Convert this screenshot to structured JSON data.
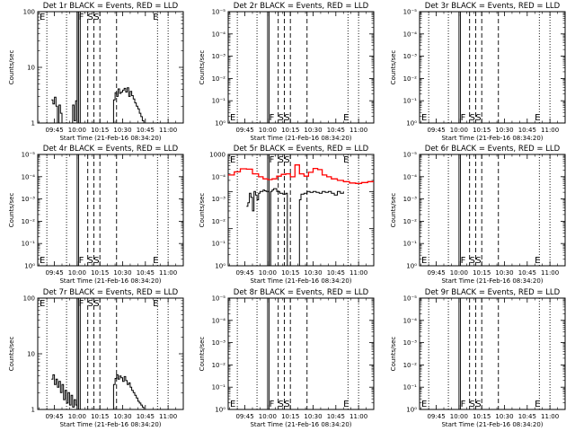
{
  "figure": {
    "x_tick_labels": [
      "09:45",
      "10:00",
      "10:15",
      "10:30",
      "10:45",
      "11:00"
    ],
    "x_label": "Start Time (21-Feb-16 08:34:20)",
    "y_label": "Counts/sec",
    "colors": {
      "events": "#000000",
      "lld": "#ff0000",
      "background": "#ffffff"
    }
  },
  "chart_data": [
    {
      "type": "line",
      "panel": 1,
      "title": "Det 1r BLACK = Events, RED = LLD",
      "y_scale": "log",
      "ylim": [
        1,
        100
      ],
      "y_tick_labels": [
        "1",
        "10",
        "100"
      ],
      "markers": [
        {
          "label": "E",
          "x": "09:34"
        },
        {
          "label": "F",
          "x": "10:01"
        },
        {
          "label": "S",
          "x": "10:07"
        },
        {
          "label": "S",
          "x": "10:11"
        },
        {
          "label": "E",
          "x": "10:50"
        }
      ],
      "series": [
        {
          "color": "#000000",
          "x": [
            "09:43",
            "09:44",
            "09:45",
            "09:46",
            "09:47",
            "09:48",
            "09:49",
            "09:50",
            "09:55",
            "09:57",
            "09:58",
            "09:59",
            "10:00",
            "10:00",
            "10:01",
            "10:02",
            "10:23",
            "10:24",
            "10:25",
            "10:26",
            "10:27",
            "10:28",
            "10:29",
            "10:30",
            "10:31",
            "10:32",
            "10:33",
            "10:34",
            "10:35",
            "10:36",
            "10:37",
            "10:38",
            "10:39",
            "10:40",
            "10:41",
            "10:42",
            "10:43",
            "10:44"
          ],
          "y": [
            2.6,
            2.2,
            2.9,
            2.0,
            1.0,
            2.1,
            1.5,
            1.0,
            1.0,
            2.1,
            1.1,
            2.5,
            1.0,
            100,
            100,
            1.0,
            1.0,
            2.6,
            3.5,
            3.0,
            4.1,
            3.4,
            3.6,
            3.9,
            4.2,
            3.6,
            4.3,
            3.0,
            3.7,
            3.1,
            2.7,
            2.3,
            2.0,
            1.8,
            1.5,
            1.3,
            1.1,
            1.0
          ]
        }
      ]
    },
    {
      "type": "line",
      "panel": 2,
      "title": "Det 2r BLACK = Events, RED = LLD",
      "y_scale": "log",
      "ylim": [
        1,
        100000
      ],
      "y_tick_labels": [
        "10⁰",
        "10⁻¹",
        "10⁻²",
        "10⁻³",
        "10⁻⁴",
        "10⁻⁵"
      ],
      "markers": [
        {
          "label": "E",
          "x": "09:34"
        },
        {
          "label": "F",
          "x": "10:01"
        },
        {
          "label": "S",
          "x": "10:07"
        },
        {
          "label": "S",
          "x": "10:11"
        },
        {
          "label": "E",
          "x": "10:50"
        }
      ],
      "series": []
    },
    {
      "type": "line",
      "panel": 3,
      "title": "Det 3r BLACK = Events, RED = LLD",
      "y_scale": "log",
      "ylim": [
        1,
        100000
      ],
      "y_tick_labels": [
        "10⁰",
        "10⁻¹",
        "10⁻²",
        "10⁻³",
        "10⁻⁴",
        "10⁻⁵"
      ],
      "markers": [
        {
          "label": "E",
          "x": "09:34"
        },
        {
          "label": "F",
          "x": "10:01"
        },
        {
          "label": "S",
          "x": "10:07"
        },
        {
          "label": "S",
          "x": "10:11"
        },
        {
          "label": "E",
          "x": "10:50"
        }
      ],
      "series": []
    },
    {
      "type": "line",
      "panel": 4,
      "title": "Det 4r BLACK = Events, RED = LLD",
      "y_scale": "log",
      "ylim": [
        1,
        100000
      ],
      "y_tick_labels": [
        "10⁰",
        "10⁻¹",
        "10⁻²",
        "10⁻³",
        "10⁻⁴",
        "10⁻⁵"
      ],
      "markers": [
        {
          "label": "E",
          "x": "09:34"
        },
        {
          "label": "F",
          "x": "10:01"
        },
        {
          "label": "S",
          "x": "10:07"
        },
        {
          "label": "S",
          "x": "10:11"
        },
        {
          "label": "E",
          "x": "10:50"
        }
      ],
      "series": []
    },
    {
      "type": "line",
      "panel": 5,
      "title": "Det 5r BLACK = Events, RED = LLD",
      "y_scale": "log",
      "ylim": [
        1,
        1000
      ],
      "y_tick_labels": [
        "10⁰",
        "10⁻¹",
        "10⁻²",
        "10⁻³",
        "10⁻⁴",
        "1000"
      ],
      "markers": [
        {
          "label": "E",
          "x": "09:34"
        },
        {
          "label": "F",
          "x": "10:01"
        },
        {
          "label": "S",
          "x": "10:07"
        },
        {
          "label": "S",
          "x": "10:11"
        },
        {
          "label": "E",
          "x": "10:50"
        }
      ],
      "series": [
        {
          "color": "#ff0000",
          "x": [
            "09:34",
            "09:38",
            "09:42",
            "09:46",
            "09:50",
            "09:54",
            "09:57",
            "10:00",
            "10:03",
            "10:06",
            "10:09",
            "10:12",
            "10:15",
            "10:18",
            "10:21",
            "10:24",
            "10:27",
            "10:30",
            "10:33",
            "10:36",
            "10:39",
            "10:42",
            "10:46",
            "10:50",
            "10:54",
            "10:58",
            "11:02",
            "11:06",
            "11:10"
          ],
          "y": [
            280,
            340,
            410,
            400,
            300,
            250,
            220,
            210,
            220,
            260,
            290,
            300,
            250,
            520,
            300,
            260,
            330,
            420,
            390,
            280,
            250,
            220,
            200,
            185,
            170,
            165,
            175,
            185,
            190
          ]
        },
        {
          "color": "#000000",
          "x": [
            "09:46",
            "09:47",
            "09:48",
            "09:49",
            "09:50",
            "09:51",
            "09:52",
            "09:53",
            "09:54",
            "09:55",
            "09:56",
            "09:57",
            "09:58",
            "09:59",
            "10:00",
            "10:01",
            "10:02",
            "10:03",
            "10:04",
            "10:06",
            "10:08",
            "10:10",
            "10:12",
            "10:13",
            "10:21",
            "10:22",
            "10:24",
            "10:26",
            "10:28",
            "10:30",
            "10:32",
            "10:34",
            "10:36",
            "10:38",
            "10:40",
            "10:42",
            "10:44",
            "10:46",
            "10:48",
            "10:50"
          ],
          "y": [
            40,
            50,
            90,
            70,
            30,
            100,
            80,
            60,
            90,
            100,
            100,
            110,
            105,
            100,
            100,
            1.0,
            100,
            110,
            120,
            100,
            90,
            85,
            90,
            1.0,
            60,
            85,
            90,
            100,
            95,
            100,
            95,
            90,
            100,
            95,
            100,
            90,
            80,
            100,
            90,
            100
          ]
        }
      ]
    },
    {
      "type": "line",
      "panel": 6,
      "title": "Det 6r BLACK = Events, RED = LLD",
      "y_scale": "log",
      "ylim": [
        1,
        100000
      ],
      "y_tick_labels": [
        "10⁰",
        "10⁻¹",
        "10⁻²",
        "10⁻³",
        "10⁻⁴",
        "10⁻⁵"
      ],
      "markers": [
        {
          "label": "E",
          "x": "09:34"
        },
        {
          "label": "F",
          "x": "10:01"
        },
        {
          "label": "S",
          "x": "10:07"
        },
        {
          "label": "S",
          "x": "10:11"
        },
        {
          "label": "E",
          "x": "10:50"
        }
      ],
      "series": []
    },
    {
      "type": "line",
      "panel": 7,
      "title": "Det 7r BLACK = Events, RED = LLD",
      "y_scale": "log",
      "ylim": [
        1,
        100
      ],
      "y_tick_labels": [
        "1",
        "10",
        "100"
      ],
      "markers": [
        {
          "label": "E",
          "x": "09:34"
        },
        {
          "label": "F",
          "x": "10:01"
        },
        {
          "label": "S",
          "x": "10:07"
        },
        {
          "label": "S",
          "x": "10:11"
        },
        {
          "label": "E",
          "x": "10:50"
        }
      ],
      "series": [
        {
          "color": "#000000",
          "x": [
            "09:43",
            "09:44",
            "09:45",
            "09:46",
            "09:47",
            "09:48",
            "09:49",
            "09:50",
            "09:51",
            "09:52",
            "09:53",
            "09:54",
            "09:55",
            "09:56",
            "09:57",
            "09:58",
            "09:59",
            "10:00",
            "10:00",
            "10:01",
            "10:02",
            "10:23",
            "10:24",
            "10:25",
            "10:26",
            "10:27",
            "10:28",
            "10:29",
            "10:30",
            "10:31",
            "10:32",
            "10:33",
            "10:34",
            "10:35",
            "10:36",
            "10:37",
            "10:38",
            "10:39",
            "10:40",
            "10:41",
            "10:42",
            "10:43",
            "10:44"
          ],
          "y": [
            3.5,
            4.2,
            2.8,
            3.5,
            2.5,
            3.2,
            2.0,
            2.8,
            1.5,
            2.2,
            1.3,
            2.0,
            1.2,
            1.8,
            1.1,
            1.5,
            1.2,
            1.0,
            100,
            100,
            1.0,
            1.0,
            2.8,
            3.6,
            4.2,
            3.5,
            4.0,
            3.7,
            3.2,
            3.9,
            3.3,
            2.8,
            3.0,
            2.5,
            2.2,
            2.0,
            1.8,
            1.6,
            1.4,
            1.3,
            1.2,
            1.1,
            1.0
          ]
        }
      ]
    },
    {
      "type": "line",
      "panel": 8,
      "title": "Det 8r BLACK = Events, RED = LLD",
      "y_scale": "log",
      "ylim": [
        1,
        100000
      ],
      "y_tick_labels": [
        "10⁰",
        "10⁻¹",
        "10⁻²",
        "10⁻³",
        "10⁻⁴",
        "10⁻⁵"
      ],
      "markers": [
        {
          "label": "E",
          "x": "09:34"
        },
        {
          "label": "F",
          "x": "10:01"
        },
        {
          "label": "S",
          "x": "10:07"
        },
        {
          "label": "S",
          "x": "10:11"
        },
        {
          "label": "E",
          "x": "10:50"
        }
      ],
      "series": []
    },
    {
      "type": "line",
      "panel": 9,
      "title": "Det 9r BLACK = Events, RED = LLD",
      "y_scale": "log",
      "ylim": [
        1,
        100000
      ],
      "y_tick_labels": [
        "10⁰",
        "10⁻¹",
        "10⁻²",
        "10⁻³",
        "10⁻⁴",
        "10⁻⁵"
      ],
      "markers": [
        {
          "label": "E",
          "x": "09:34"
        },
        {
          "label": "F",
          "x": "10:01"
        },
        {
          "label": "S",
          "x": "10:07"
        },
        {
          "label": "S",
          "x": "10:11"
        },
        {
          "label": "E",
          "x": "10:50"
        }
      ],
      "series": []
    }
  ]
}
